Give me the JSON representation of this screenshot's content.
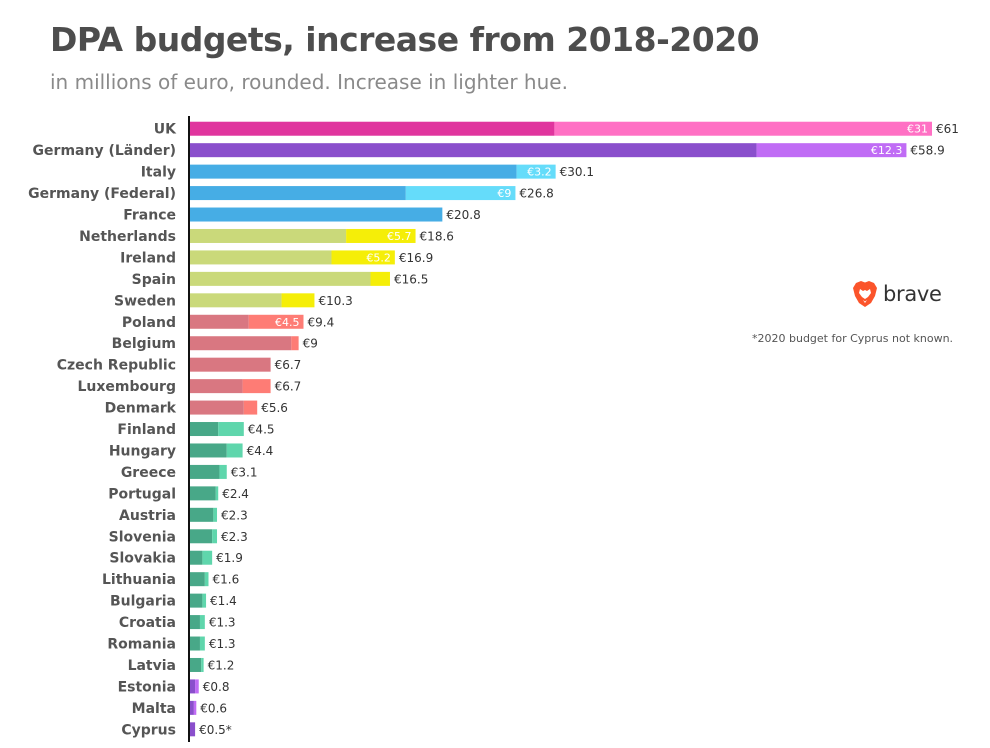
{
  "title": "DPA budgets, increase from 2018-2020",
  "subtitle": "in millions of euro, rounded. Increase in lighter hue.",
  "logo": {
    "name": "brave-logo",
    "text": "brave",
    "color": "#fb542b"
  },
  "footnote": "*2020 budget for Cyprus not known.",
  "chart_data": {
    "type": "bar",
    "orientation": "horizontal",
    "stacked": true,
    "unit": "million euro",
    "categories": [
      "UK",
      "Germany (Länder)",
      "Italy",
      "Germany (Federal)",
      "France",
      "Netherlands",
      "Ireland",
      "Spain",
      "Sweden",
      "Poland",
      "Belgium",
      "Czech Republic",
      "Luxembourg",
      "Denmark",
      "Finland",
      "Hungary",
      "Greece",
      "Portugal",
      "Austria",
      "Slovenia",
      "Slovakia",
      "Lithuania",
      "Bulgaria",
      "Croatia",
      "Romania",
      "Latvia",
      "Estonia",
      "Malta",
      "Cyprus"
    ],
    "series": [
      {
        "role": "2018 budget",
        "values": [
          30,
          46.6,
          26.9,
          17.8,
          20.8,
          12.9,
          11.7,
          14.9,
          7.6,
          4.9,
          8.4,
          6.7,
          4.4,
          4.5,
          2.4,
          3.1,
          2.5,
          2.2,
          2.0,
          1.9,
          1.1,
          1.3,
          1.1,
          0.9,
          0.9,
          1.0,
          0.5,
          0.4,
          0.5
        ]
      },
      {
        "role": "increase to 2020",
        "values": [
          31,
          12.3,
          3.2,
          9,
          0,
          5.7,
          5.2,
          1.6,
          2.7,
          4.5,
          0.6,
          0,
          2.3,
          1.1,
          2.1,
          1.3,
          0.6,
          0.2,
          0.3,
          0.4,
          0.8,
          0.3,
          0.3,
          0.4,
          0.4,
          0.2,
          0.3,
          0.2,
          0
        ]
      }
    ],
    "totals_labels": [
      "€61",
      "€58.9",
      "€30.1",
      "€26.8",
      "€20.8",
      "€18.6",
      "€16.9",
      "€16.5",
      "€10.3",
      "€9.4",
      "€9",
      "€6.7",
      "€6.7",
      "€5.6",
      "€4.5",
      "€4.4",
      "€3.1",
      "€2.4",
      "€2.3",
      "€2.3",
      "€1.9",
      "€1.6",
      "€1.4",
      "€1.3",
      "€1.3",
      "€1.2",
      "€0.8",
      "€0.6",
      "€0.5*"
    ],
    "increase_labels": [
      "€31",
      "€12.3",
      "€3.2",
      "€9",
      "",
      "€5.7",
      "€5.2",
      "",
      "",
      "€4.5",
      "",
      "",
      "",
      "",
      "",
      "",
      "",
      "",
      "",
      "",
      "",
      "",
      "",
      "",
      "",
      "",
      "",
      "",
      ""
    ],
    "color_groups": [
      {
        "base": "#e0359e",
        "light": "#ff70c4"
      },
      {
        "base": "#8a4fcc",
        "light": "#c06cf5"
      },
      {
        "base": "#46ade5",
        "light": "#65dcfa"
      },
      {
        "base": "#46ade5",
        "light": "#65dcfa"
      },
      {
        "base": "#46ade5",
        "light": "#65dcfa"
      },
      {
        "base": "#cad97a",
        "light": "#f5ee08"
      },
      {
        "base": "#cad97a",
        "light": "#f5ee08"
      },
      {
        "base": "#cad97a",
        "light": "#f5ee08"
      },
      {
        "base": "#cad97a",
        "light": "#f5ee08"
      },
      {
        "base": "#d97781",
        "light": "#fe7c75"
      },
      {
        "base": "#d97781",
        "light": "#fe7c75"
      },
      {
        "base": "#d97781",
        "light": "#fe7c75"
      },
      {
        "base": "#d97781",
        "light": "#fe7c75"
      },
      {
        "base": "#d97781",
        "light": "#fe7c75"
      },
      {
        "base": "#48a888",
        "light": "#5fd6ac"
      },
      {
        "base": "#48a888",
        "light": "#5fd6ac"
      },
      {
        "base": "#48a888",
        "light": "#5fd6ac"
      },
      {
        "base": "#48a888",
        "light": "#5fd6ac"
      },
      {
        "base": "#48a888",
        "light": "#5fd6ac"
      },
      {
        "base": "#48a888",
        "light": "#5fd6ac"
      },
      {
        "base": "#48a888",
        "light": "#5fd6ac"
      },
      {
        "base": "#48a888",
        "light": "#5fd6ac"
      },
      {
        "base": "#48a888",
        "light": "#5fd6ac"
      },
      {
        "base": "#48a888",
        "light": "#5fd6ac"
      },
      {
        "base": "#48a888",
        "light": "#5fd6ac"
      },
      {
        "base": "#48a888",
        "light": "#5fd6ac"
      },
      {
        "base": "#8a4fcc",
        "light": "#c06cf5"
      },
      {
        "base": "#8a4fcc",
        "light": "#c06cf5"
      },
      {
        "base": "#8a4fcc",
        "light": "#c06cf5"
      }
    ],
    "xlim": [
      0,
      61
    ],
    "grid": false,
    "axis_color": "#111111"
  }
}
